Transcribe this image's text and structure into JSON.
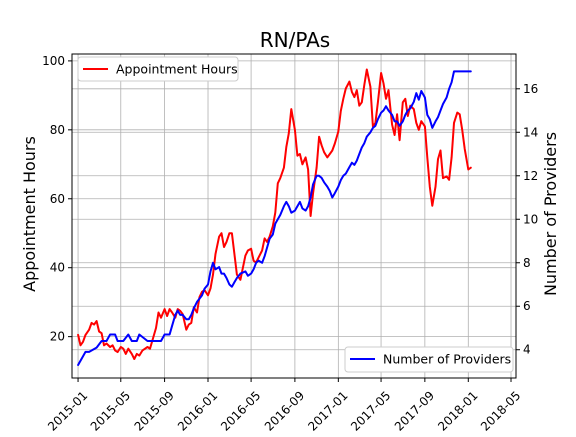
{
  "chart_data": {
    "type": "line",
    "title": "RN/PAs",
    "xlabel": "",
    "ylabel_left": "Appointment Hours",
    "ylabel_right": "Number of Providers",
    "x_ticks": [
      "2015-01",
      "2015-05",
      "2015-09",
      "2016-01",
      "2016-05",
      "2016-09",
      "2017-01",
      "2017-05",
      "2017-09",
      "2018-01",
      "2018-05"
    ],
    "xlim": [
      "2014-12-15",
      "2018-05-15"
    ],
    "ylim_left": [
      8,
      102
    ],
    "yticks_left": [
      20,
      40,
      60,
      80,
      100
    ],
    "ylim_right": [
      2.7,
      17.6
    ],
    "yticks_right": [
      4,
      6,
      8,
      10,
      12,
      14,
      16
    ],
    "grid": true,
    "legend_left": {
      "position": "upper left",
      "label": "Appointment Hours"
    },
    "legend_right": {
      "position": "lower right",
      "label": "Number of Providers"
    },
    "series": [
      {
        "name": "Appointment Hours",
        "axis": "left",
        "color": "#ff0000",
        "points": [
          [
            "2015-01-01",
            20.5
          ],
          [
            "2015-01-08",
            17.5
          ],
          [
            "2015-01-15",
            18.5
          ],
          [
            "2015-01-22",
            20.5
          ],
          [
            "2015-02-01",
            22.0
          ],
          [
            "2015-02-08",
            24.0
          ],
          [
            "2015-02-15",
            23.5
          ],
          [
            "2015-02-22",
            24.5
          ],
          [
            "2015-03-01",
            21.5
          ],
          [
            "2015-03-08",
            21.0
          ],
          [
            "2015-03-15",
            17.5
          ],
          [
            "2015-03-22",
            18.0
          ],
          [
            "2015-04-01",
            17.0
          ],
          [
            "2015-04-08",
            17.5
          ],
          [
            "2015-04-15",
            16.0
          ],
          [
            "2015-04-22",
            15.5
          ],
          [
            "2015-05-01",
            17.0
          ],
          [
            "2015-05-08",
            16.5
          ],
          [
            "2015-05-15",
            15.0
          ],
          [
            "2015-05-22",
            16.5
          ],
          [
            "2015-06-01",
            15.0
          ],
          [
            "2015-06-08",
            13.5
          ],
          [
            "2015-06-15",
            15.0
          ],
          [
            "2015-06-22",
            14.5
          ],
          [
            "2015-07-01",
            16.0
          ],
          [
            "2015-07-08",
            16.5
          ],
          [
            "2015-07-15",
            17.0
          ],
          [
            "2015-07-22",
            16.5
          ],
          [
            "2015-08-01",
            20.0
          ],
          [
            "2015-08-08",
            22.5
          ],
          [
            "2015-08-15",
            27.0
          ],
          [
            "2015-08-22",
            25.5
          ],
          [
            "2015-09-01",
            28.0
          ],
          [
            "2015-09-08",
            26.0
          ],
          [
            "2015-09-15",
            28.0
          ],
          [
            "2015-09-22",
            27.0
          ],
          [
            "2015-10-01",
            25.5
          ],
          [
            "2015-10-08",
            28.0
          ],
          [
            "2015-10-15",
            27.5
          ],
          [
            "2015-10-22",
            26.5
          ],
          [
            "2015-11-01",
            22.0
          ],
          [
            "2015-11-08",
            23.5
          ],
          [
            "2015-11-15",
            24.0
          ],
          [
            "2015-11-22",
            28.5
          ],
          [
            "2015-12-01",
            27.0
          ],
          [
            "2015-12-08",
            31.5
          ],
          [
            "2015-12-15",
            33.0
          ],
          [
            "2015-12-22",
            33.5
          ],
          [
            "2016-01-01",
            32.0
          ],
          [
            "2016-01-08",
            34.0
          ],
          [
            "2016-01-15",
            38.0
          ],
          [
            "2016-01-22",
            44.0
          ],
          [
            "2016-02-01",
            49.0
          ],
          [
            "2016-02-08",
            50.0
          ],
          [
            "2016-02-15",
            46.0
          ],
          [
            "2016-02-22",
            47.5
          ],
          [
            "2016-03-01",
            50.0
          ],
          [
            "2016-03-08",
            50.0
          ],
          [
            "2016-03-15",
            44.0
          ],
          [
            "2016-03-22",
            38.0
          ],
          [
            "2016-04-01",
            36.5
          ],
          [
            "2016-04-08",
            40.0
          ],
          [
            "2016-04-15",
            43.5
          ],
          [
            "2016-04-22",
            45.0
          ],
          [
            "2016-05-01",
            45.5
          ],
          [
            "2016-05-08",
            42.0
          ],
          [
            "2016-05-15",
            41.5
          ],
          [
            "2016-05-22",
            43.0
          ],
          [
            "2016-06-01",
            45.0
          ],
          [
            "2016-06-08",
            48.5
          ],
          [
            "2016-06-15",
            47.5
          ],
          [
            "2016-06-22",
            49.0
          ],
          [
            "2016-07-01",
            52.0
          ],
          [
            "2016-07-08",
            56.0
          ],
          [
            "2016-07-15",
            64.5
          ],
          [
            "2016-07-22",
            66.0
          ],
          [
            "2016-08-01",
            69.0
          ],
          [
            "2016-08-08",
            75.0
          ],
          [
            "2016-08-15",
            79.0
          ],
          [
            "2016-08-22",
            86.0
          ],
          [
            "2016-09-01",
            80.0
          ],
          [
            "2016-09-08",
            72.5
          ],
          [
            "2016-09-15",
            73.0
          ],
          [
            "2016-09-22",
            70.0
          ],
          [
            "2016-10-01",
            72.0
          ],
          [
            "2016-10-08",
            68.5
          ],
          [
            "2016-10-15",
            55.0
          ],
          [
            "2016-10-22",
            61.5
          ],
          [
            "2016-11-01",
            69.0
          ],
          [
            "2016-11-08",
            78.0
          ],
          [
            "2016-11-15",
            75.5
          ],
          [
            "2016-11-22",
            73.5
          ],
          [
            "2016-12-01",
            72.0
          ],
          [
            "2016-12-08",
            73.0
          ],
          [
            "2016-12-15",
            74.0
          ],
          [
            "2016-12-22",
            76.0
          ],
          [
            "2017-01-01",
            79.5
          ],
          [
            "2017-01-08",
            85.5
          ],
          [
            "2017-01-15",
            89.0
          ],
          [
            "2017-01-22",
            92.0
          ],
          [
            "2017-02-01",
            94.0
          ],
          [
            "2017-02-08",
            91.0
          ],
          [
            "2017-02-15",
            89.5
          ],
          [
            "2017-02-22",
            91.5
          ],
          [
            "2017-03-01",
            87.0
          ],
          [
            "2017-03-08",
            88.0
          ],
          [
            "2017-03-15",
            93.0
          ],
          [
            "2017-03-22",
            97.5
          ],
          [
            "2017-04-01",
            92.5
          ],
          [
            "2017-04-08",
            81.0
          ],
          [
            "2017-04-15",
            82.0
          ],
          [
            "2017-04-22",
            88.0
          ],
          [
            "2017-05-01",
            96.5
          ],
          [
            "2017-05-08",
            93.5
          ],
          [
            "2017-05-15",
            89.0
          ],
          [
            "2017-05-22",
            91.5
          ],
          [
            "2017-06-01",
            81.5
          ],
          [
            "2017-06-08",
            78.5
          ],
          [
            "2017-06-15",
            84.5
          ],
          [
            "2017-06-22",
            77.0
          ],
          [
            "2017-07-01",
            88.0
          ],
          [
            "2017-07-08",
            89.0
          ],
          [
            "2017-07-15",
            84.0
          ],
          [
            "2017-07-22",
            87.0
          ],
          [
            "2017-08-01",
            86.0
          ],
          [
            "2017-08-08",
            82.0
          ],
          [
            "2017-08-15",
            80.0
          ],
          [
            "2017-08-22",
            82.5
          ],
          [
            "2017-09-01",
            81.0
          ],
          [
            "2017-09-08",
            72.0
          ],
          [
            "2017-09-15",
            63.5
          ],
          [
            "2017-09-22",
            58.0
          ],
          [
            "2017-10-01",
            63.5
          ],
          [
            "2017-10-08",
            71.5
          ],
          [
            "2017-10-15",
            74.0
          ],
          [
            "2017-10-22",
            66.0
          ],
          [
            "2017-11-01",
            66.5
          ],
          [
            "2017-11-08",
            65.5
          ],
          [
            "2017-11-15",
            72.0
          ],
          [
            "2017-11-22",
            82.0
          ],
          [
            "2017-12-01",
            85.0
          ],
          [
            "2017-12-08",
            84.5
          ],
          [
            "2017-12-15",
            80.0
          ],
          [
            "2017-12-22",
            74.5
          ],
          [
            "2018-01-01",
            68.5
          ],
          [
            "2018-01-08",
            69.0
          ]
        ]
      },
      {
        "name": "Number of Providers",
        "axis": "right",
        "color": "#0000ff",
        "points": [
          [
            "2015-01-01",
            3.3
          ],
          [
            "2015-01-22",
            3.9
          ],
          [
            "2015-02-01",
            3.9
          ],
          [
            "2015-02-22",
            4.1
          ],
          [
            "2015-03-08",
            4.4
          ],
          [
            "2015-03-22",
            4.4
          ],
          [
            "2015-04-01",
            4.7
          ],
          [
            "2015-04-15",
            4.7
          ],
          [
            "2015-04-22",
            4.4
          ],
          [
            "2015-05-08",
            4.4
          ],
          [
            "2015-05-22",
            4.7
          ],
          [
            "2015-06-01",
            4.4
          ],
          [
            "2015-06-15",
            4.4
          ],
          [
            "2015-06-22",
            4.7
          ],
          [
            "2015-07-15",
            4.4
          ],
          [
            "2015-08-01",
            4.4
          ],
          [
            "2015-08-22",
            4.4
          ],
          [
            "2015-09-01",
            4.7
          ],
          [
            "2015-09-15",
            4.7
          ],
          [
            "2015-09-22",
            5.1
          ],
          [
            "2015-10-01",
            5.6
          ],
          [
            "2015-10-08",
            5.8
          ],
          [
            "2015-10-15",
            5.6
          ],
          [
            "2015-10-22",
            5.6
          ],
          [
            "2015-11-01",
            5.4
          ],
          [
            "2015-11-08",
            5.4
          ],
          [
            "2015-11-15",
            5.6
          ],
          [
            "2015-11-22",
            5.9
          ],
          [
            "2015-12-01",
            6.2
          ],
          [
            "2015-12-15",
            6.5
          ],
          [
            "2015-12-22",
            6.8
          ],
          [
            "2016-01-01",
            7.0
          ],
          [
            "2016-01-08",
            7.6
          ],
          [
            "2016-01-15",
            8.0
          ],
          [
            "2016-01-22",
            7.7
          ],
          [
            "2016-02-01",
            7.8
          ],
          [
            "2016-02-08",
            7.5
          ],
          [
            "2016-02-15",
            7.5
          ],
          [
            "2016-02-22",
            7.3
          ],
          [
            "2016-03-01",
            7.0
          ],
          [
            "2016-03-08",
            6.9
          ],
          [
            "2016-03-15",
            7.1
          ],
          [
            "2016-03-22",
            7.3
          ],
          [
            "2016-04-01",
            7.5
          ],
          [
            "2016-04-15",
            7.6
          ],
          [
            "2016-04-22",
            7.4
          ],
          [
            "2016-05-01",
            7.5
          ],
          [
            "2016-05-08",
            7.7
          ],
          [
            "2016-05-15",
            8.0
          ],
          [
            "2016-05-22",
            8.1
          ],
          [
            "2016-06-01",
            8.0
          ],
          [
            "2016-06-08",
            8.3
          ],
          [
            "2016-06-15",
            8.7
          ],
          [
            "2016-06-22",
            9.1
          ],
          [
            "2016-07-01",
            9.3
          ],
          [
            "2016-07-08",
            9.8
          ],
          [
            "2016-07-15",
            10.0
          ],
          [
            "2016-07-22",
            10.2
          ],
          [
            "2016-08-01",
            10.6
          ],
          [
            "2016-08-08",
            10.8
          ],
          [
            "2016-08-15",
            10.6
          ],
          [
            "2016-08-22",
            10.3
          ],
          [
            "2016-09-01",
            10.4
          ],
          [
            "2016-09-08",
            10.6
          ],
          [
            "2016-09-15",
            10.8
          ],
          [
            "2016-09-22",
            10.5
          ],
          [
            "2016-10-01",
            10.4
          ],
          [
            "2016-10-08",
            10.6
          ],
          [
            "2016-10-15",
            11.0
          ],
          [
            "2016-10-22",
            11.6
          ],
          [
            "2016-11-01",
            12.0
          ],
          [
            "2016-11-08",
            12.0
          ],
          [
            "2016-11-15",
            11.9
          ],
          [
            "2016-11-22",
            11.7
          ],
          [
            "2016-12-01",
            11.5
          ],
          [
            "2016-12-08",
            11.3
          ],
          [
            "2016-12-15",
            11.0
          ],
          [
            "2016-12-22",
            11.2
          ],
          [
            "2017-01-01",
            11.5
          ],
          [
            "2017-01-08",
            11.8
          ],
          [
            "2017-01-15",
            12.0
          ],
          [
            "2017-01-22",
            12.1
          ],
          [
            "2017-02-01",
            12.4
          ],
          [
            "2017-02-08",
            12.6
          ],
          [
            "2017-02-15",
            12.5
          ],
          [
            "2017-02-22",
            12.7
          ],
          [
            "2017-03-01",
            13.0
          ],
          [
            "2017-03-08",
            13.3
          ],
          [
            "2017-03-15",
            13.5
          ],
          [
            "2017-03-22",
            13.8
          ],
          [
            "2017-04-01",
            14.0
          ],
          [
            "2017-04-08",
            14.2
          ],
          [
            "2017-04-15",
            14.3
          ],
          [
            "2017-04-22",
            14.6
          ],
          [
            "2017-05-01",
            14.9
          ],
          [
            "2017-05-08",
            15.0
          ],
          [
            "2017-05-15",
            15.2
          ],
          [
            "2017-05-22",
            15.0
          ],
          [
            "2017-06-01",
            14.8
          ],
          [
            "2017-06-08",
            14.5
          ],
          [
            "2017-06-15",
            14.5
          ],
          [
            "2017-06-22",
            14.3
          ],
          [
            "2017-07-01",
            14.5
          ],
          [
            "2017-07-08",
            14.8
          ],
          [
            "2017-07-15",
            15.0
          ],
          [
            "2017-07-22",
            15.1
          ],
          [
            "2017-08-01",
            15.4
          ],
          [
            "2017-08-08",
            15.8
          ],
          [
            "2017-08-15",
            15.5
          ],
          [
            "2017-08-22",
            15.9
          ],
          [
            "2017-09-01",
            15.6
          ],
          [
            "2017-09-08",
            14.8
          ],
          [
            "2017-09-15",
            14.6
          ],
          [
            "2017-09-22",
            14.2
          ],
          [
            "2017-10-01",
            14.5
          ],
          [
            "2017-10-08",
            14.7
          ],
          [
            "2017-10-15",
            15.0
          ],
          [
            "2017-10-22",
            15.3
          ],
          [
            "2017-11-01",
            15.6
          ],
          [
            "2017-11-08",
            16.0
          ],
          [
            "2017-11-15",
            16.3
          ],
          [
            "2017-11-22",
            16.8
          ],
          [
            "2017-12-01",
            16.8
          ],
          [
            "2018-01-01",
            16.8
          ],
          [
            "2018-01-08",
            16.8
          ]
        ]
      }
    ]
  }
}
